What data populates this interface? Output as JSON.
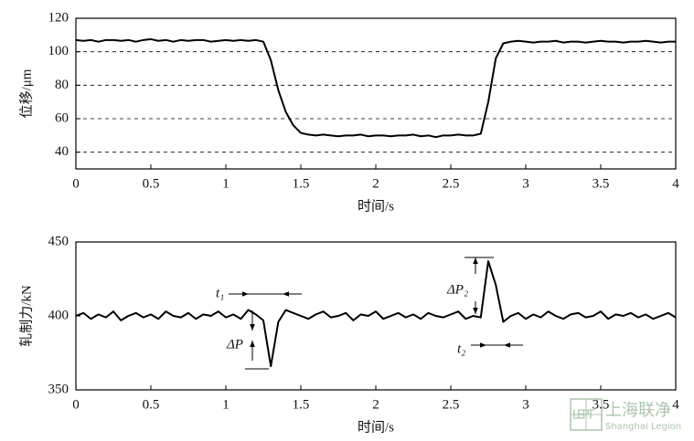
{
  "chart_data": [
    {
      "type": "line",
      "xlabel": "时间/s",
      "ylabel": "位移/μm",
      "xlim": [
        0,
        4
      ],
      "xticks": [
        0,
        0.5,
        1,
        1.5,
        2,
        2.5,
        3,
        3.5,
        4
      ],
      "ylim": [
        30,
        120
      ],
      "yticks": [
        40,
        60,
        80,
        100,
        120
      ],
      "grid": true,
      "series": [
        {
          "color": "#000000",
          "x": [
            0,
            0.05,
            0.1,
            0.15,
            0.2,
            0.25,
            0.3,
            0.35,
            0.4,
            0.45,
            0.5,
            0.55,
            0.6,
            0.65,
            0.7,
            0.75,
            0.8,
            0.85,
            0.9,
            0.95,
            1,
            1.05,
            1.1,
            1.15,
            1.2,
            1.25,
            1.3,
            1.35,
            1.4,
            1.45,
            1.5,
            1.55,
            1.6,
            1.65,
            1.7,
            1.75,
            1.8,
            1.85,
            1.9,
            1.95,
            2,
            2.05,
            2.1,
            2.15,
            2.2,
            2.25,
            2.3,
            2.35,
            2.4,
            2.45,
            2.5,
            2.55,
            2.6,
            2.65,
            2.7,
            2.75,
            2.8,
            2.85,
            2.9,
            2.95,
            3,
            3.05,
            3.1,
            3.15,
            3.2,
            3.25,
            3.3,
            3.35,
            3.4,
            3.45,
            3.5,
            3.55,
            3.6,
            3.65,
            3.7,
            3.75,
            3.8,
            3.85,
            3.9,
            3.95,
            4
          ],
          "values": [
            107,
            106.5,
            107,
            106,
            107,
            107,
            106.5,
            107,
            106,
            107,
            107.5,
            106.5,
            107,
            106,
            107,
            106.5,
            107,
            107,
            106,
            106.5,
            107,
            106.5,
            107,
            106.5,
            107,
            106,
            95,
            77,
            64,
            56,
            51.5,
            50.5,
            50,
            50.5,
            50,
            49.5,
            50,
            50,
            50.5,
            49.5,
            50,
            50,
            49.5,
            50,
            50,
            50.5,
            49.5,
            50,
            49,
            50,
            50,
            50.5,
            50,
            50,
            51,
            70,
            96,
            105,
            106,
            106.5,
            106,
            105.5,
            106,
            106,
            106.5,
            105.5,
            106,
            106,
            105.5,
            106,
            106.5,
            106,
            106,
            105.5,
            106,
            106,
            106.5,
            106,
            105.5,
            106,
            106
          ]
        }
      ]
    },
    {
      "type": "line",
      "xlabel": "时间/s",
      "ylabel": "轧制力/kN",
      "xlim": [
        0,
        4
      ],
      "xticks": [
        0,
        0.5,
        1,
        1.5,
        2,
        2.5,
        3,
        3.5,
        4
      ],
      "ylim": [
        350,
        450
      ],
      "yticks": [
        350,
        400,
        450
      ],
      "grid": false,
      "annotations": [
        "t₁",
        "ΔP",
        "ΔP₂",
        "t₂"
      ],
      "series": [
        {
          "color": "#000000",
          "x": [
            0,
            0.05,
            0.1,
            0.15,
            0.2,
            0.25,
            0.3,
            0.35,
            0.4,
            0.45,
            0.5,
            0.55,
            0.6,
            0.65,
            0.7,
            0.75,
            0.8,
            0.85,
            0.9,
            0.95,
            1,
            1.05,
            1.1,
            1.15,
            1.2,
            1.25,
            1.3,
            1.35,
            1.4,
            1.45,
            1.5,
            1.55,
            1.6,
            1.65,
            1.7,
            1.75,
            1.8,
            1.85,
            1.9,
            1.95,
            2,
            2.05,
            2.1,
            2.15,
            2.2,
            2.25,
            2.3,
            2.35,
            2.4,
            2.45,
            2.5,
            2.55,
            2.6,
            2.65,
            2.7,
            2.75,
            2.8,
            2.85,
            2.9,
            2.95,
            3,
            3.05,
            3.1,
            3.15,
            3.2,
            3.25,
            3.3,
            3.35,
            3.4,
            3.45,
            3.5,
            3.55,
            3.6,
            3.65,
            3.7,
            3.75,
            3.8,
            3.85,
            3.9,
            3.95,
            4
          ],
          "values": [
            400,
            402,
            398,
            401,
            399,
            403,
            397,
            400,
            402,
            399,
            401,
            398,
            403,
            400,
            399,
            402,
            398,
            401,
            400,
            403,
            399,
            401,
            398,
            404,
            401,
            397,
            366,
            396,
            404,
            402,
            400,
            398,
            401,
            403,
            399,
            400,
            402,
            397,
            401,
            400,
            403,
            398,
            400,
            402,
            399,
            401,
            398,
            402,
            400,
            399,
            401,
            403,
            398,
            400,
            399,
            437,
            421,
            396,
            400,
            402,
            398,
            401,
            399,
            403,
            400,
            398,
            401,
            402,
            399,
            400,
            403,
            398,
            401,
            400,
            402,
            399,
            401,
            398,
            400,
            402,
            399
          ]
        }
      ]
    }
  ],
  "watermark": {
    "logo": "LEPT",
    "name": "上海联净",
    "english": "Shanghai Legion"
  }
}
